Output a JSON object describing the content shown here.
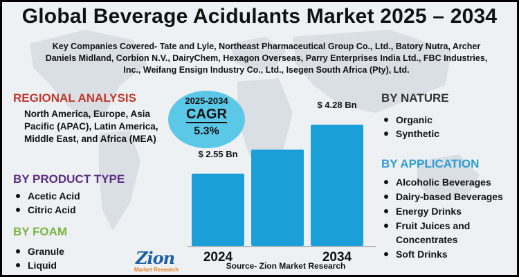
{
  "title": "Global Beverage Acidulants Market 2025 – 2034",
  "companies": "Key Companies Covered- Tate and Lyle, Northeast Pharmaceutical Group Co., Ltd., Batory Nutra, Archer Daniels Midland, Corbion N.V., DairyChem, Hexagon Overseas, Parry Enterprises India Ltd., FBC Industries, Inc., Weifang Ensign Industry Co., Ltd., Isegen South Africa (Pty), Ltd.",
  "regional": {
    "heading": "REGIONAL ANALYSIS",
    "text": "North America, Europe, Asia Pacific (APAC), Latin America, Middle East, and Africa (MEA)"
  },
  "product_type": {
    "heading": "BY PRODUCT TYPE",
    "items": [
      "Acetic Acid",
      "Citric Acid"
    ]
  },
  "foam": {
    "heading": "BY FOAM",
    "items": [
      "Granule",
      "Liquid"
    ]
  },
  "nature": {
    "heading": "BY NATURE",
    "items": [
      "Organic",
      "Synthetic"
    ]
  },
  "application": {
    "heading": "BY APPLICATION",
    "items": [
      "Alcoholic Beverages",
      "Dairy-based Beverages",
      "Energy Drinks",
      "Fruit Juices and Concentrates",
      "Soft Drinks"
    ]
  },
  "cagr": {
    "period": "2025-2034",
    "label": "CAGR",
    "value": "5.3%"
  },
  "chart_data": {
    "type": "bar",
    "categories": [
      "2024",
      "",
      "2034"
    ],
    "values": [
      2.55,
      3.4,
      4.28
    ],
    "labels": [
      "$ 2.55 Bn",
      "",
      "$ 4.28 Bn"
    ],
    "unit": "Bn USD",
    "ylim": [
      0,
      4.6
    ],
    "color": "#1a9fd9"
  },
  "logo": {
    "name": "Zion",
    "sub": "Market Research"
  },
  "source": "Source- Zion Market Research"
}
